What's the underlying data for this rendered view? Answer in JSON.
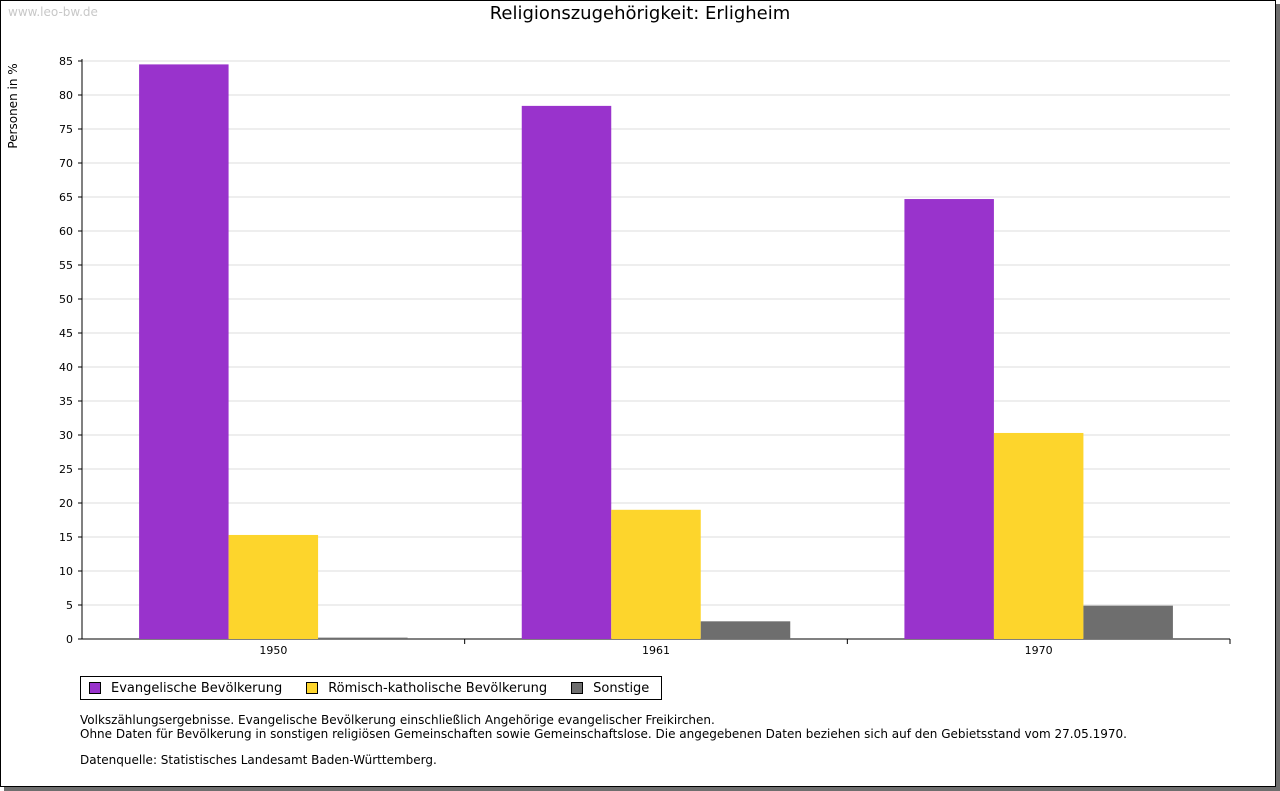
{
  "watermark": "www.leo-bw.de",
  "chart_data": {
    "type": "bar",
    "title": "Religionszugehörigkeit: Erligheim",
    "xlabel": "",
    "ylabel": "Personen in %",
    "ylim": [
      0,
      85
    ],
    "ytick_step": 5,
    "yticks": [
      "0",
      "5",
      "10",
      "15",
      "20",
      "25",
      "30",
      "35",
      "40",
      "45",
      "50",
      "55",
      "60",
      "65",
      "70",
      "75",
      "80",
      "85"
    ],
    "categories": [
      "1950",
      "1961",
      "1970"
    ],
    "series": [
      {
        "name": "Evangelische Bevölkerung",
        "color": "#9933cc",
        "values": [
          84.5,
          78.4,
          64.7
        ]
      },
      {
        "name": "Römisch-katholische Bevölkerung",
        "color": "#fdd52c",
        "values": [
          15.3,
          19.0,
          30.3
        ]
      },
      {
        "name": "Sonstige",
        "color": "#6e6e6e",
        "values": [
          0.2,
          2.6,
          4.9
        ]
      }
    ],
    "grid": true,
    "legend_position": "bottom-left"
  },
  "notes": {
    "line1": "Volkszählungsergebnisse. Evangelische Bevölkerung einschließlich Angehörige evangelischer Freikirchen.",
    "line2": "Ohne Daten für Bevölkerung in sonstigen religiösen Gemeinschaften sowie Gemeinschaftslose. Die angegebenen Daten beziehen sich auf den Gebietsstand vom 27.05.1970.",
    "source": "Datenquelle: Statistisches Landesamt Baden-Württemberg."
  }
}
